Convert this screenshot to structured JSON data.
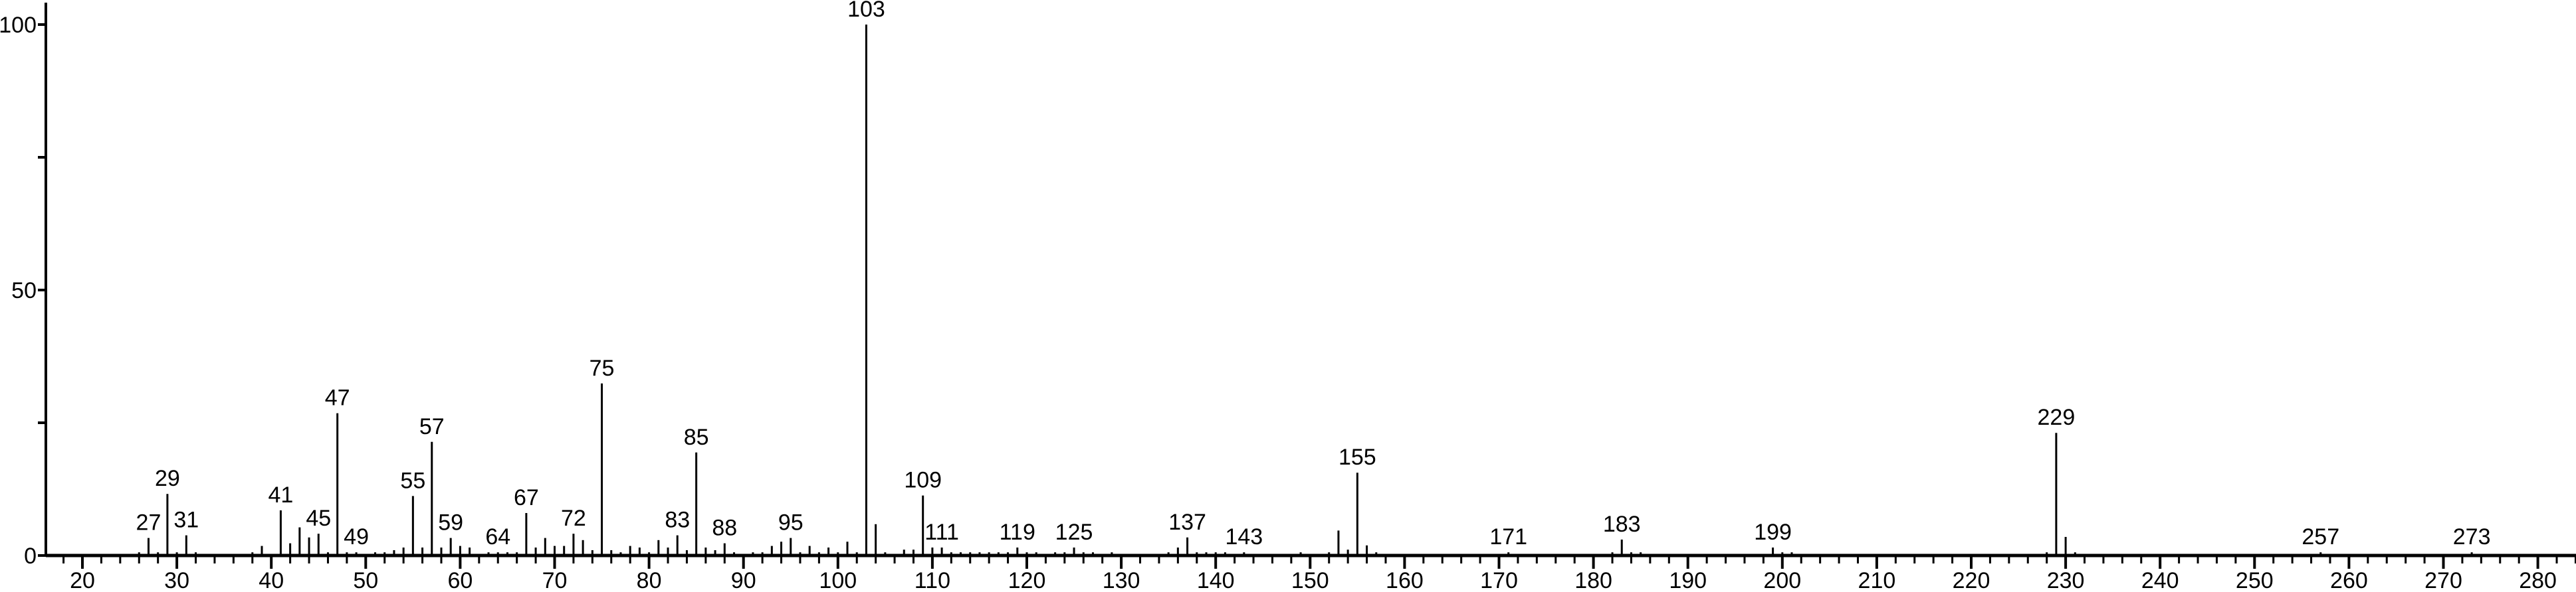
{
  "chart_data": {
    "type": "bar",
    "title": "",
    "xlabel": "",
    "ylabel": "",
    "xlim": [
      16.1,
      284
    ],
    "ylim": [
      0,
      100
    ],
    "grid": false,
    "x_ticks": [
      "20",
      "30",
      "40",
      "50",
      "60",
      "70",
      "80",
      "90",
      "100",
      "110",
      "120",
      "130",
      "140",
      "150",
      "160",
      "170",
      "180",
      "190",
      "200",
      "210",
      "220",
      "230",
      "240",
      "250",
      "260",
      "270",
      "280"
    ],
    "y_ticks": [
      "0",
      "50",
      "100"
    ],
    "bar_color": "#000000",
    "peaks": [
      [
        26,
        0.6
      ],
      [
        27,
        3.3
      ],
      [
        28,
        0.6
      ],
      [
        29,
        11.6
      ],
      [
        30,
        0.6
      ],
      [
        31,
        3.8
      ],
      [
        32,
        0.6
      ],
      [
        38,
        0.6
      ],
      [
        39,
        1.8
      ],
      [
        41,
        8.5
      ],
      [
        42,
        2.3
      ],
      [
        43,
        5.3
      ],
      [
        44,
        3.4
      ],
      [
        45,
        4.1
      ],
      [
        46,
        0.6
      ],
      [
        47,
        26.8
      ],
      [
        48,
        0.6
      ],
      [
        49,
        0.6
      ],
      [
        51,
        0.6
      ],
      [
        52,
        0.6
      ],
      [
        53,
        1
      ],
      [
        54,
        1.5
      ],
      [
        55,
        11.2
      ],
      [
        56,
        1.5
      ],
      [
        57,
        21.4
      ],
      [
        58,
        1.5
      ],
      [
        59,
        3.3
      ],
      [
        60,
        1.8
      ],
      [
        61,
        1.5
      ],
      [
        63,
        0.6
      ],
      [
        64,
        0.6
      ],
      [
        65,
        0.6
      ],
      [
        66,
        0.6
      ],
      [
        67,
        8
      ],
      [
        68,
        1.5
      ],
      [
        69,
        3.3
      ],
      [
        70,
        1.8
      ],
      [
        71,
        1.8
      ],
      [
        72,
        4.1
      ],
      [
        73,
        2.9
      ],
      [
        74,
        1
      ],
      [
        75,
        32.4
      ],
      [
        76,
        1
      ],
      [
        77,
        0.6
      ],
      [
        78,
        1.8
      ],
      [
        79,
        1.5
      ],
      [
        80,
        0.6
      ],
      [
        81,
        2.9
      ],
      [
        82,
        1.5
      ],
      [
        83,
        3.8
      ],
      [
        84,
        1
      ],
      [
        85,
        19.4
      ],
      [
        86,
        1.5
      ],
      [
        87,
        1
      ],
      [
        88,
        2.3
      ],
      [
        89,
        0.6
      ],
      [
        91,
        0.6
      ],
      [
        92,
        0.6
      ],
      [
        93,
        1.8
      ],
      [
        94,
        2.6
      ],
      [
        95,
        3.3
      ],
      [
        96,
        0.6
      ],
      [
        97,
        1.8
      ],
      [
        98,
        0.6
      ],
      [
        99,
        1.5
      ],
      [
        100,
        0.6
      ],
      [
        101,
        2.6
      ],
      [
        102,
        0.6
      ],
      [
        103,
        100
      ],
      [
        104,
        5.9
      ],
      [
        105,
        0.6
      ],
      [
        107,
        1.1
      ],
      [
        108,
        1.1
      ],
      [
        109,
        11.3
      ],
      [
        110,
        1.5
      ],
      [
        111,
        1.5
      ],
      [
        112,
        0.6
      ],
      [
        113,
        0.6
      ],
      [
        114,
        0.6
      ],
      [
        115,
        0.6
      ],
      [
        116,
        0.6
      ],
      [
        117,
        0.6
      ],
      [
        118,
        0.6
      ],
      [
        119,
        1.5
      ],
      [
        120,
        0.6
      ],
      [
        121,
        0.6
      ],
      [
        123,
        0.6
      ],
      [
        124,
        0.6
      ],
      [
        125,
        1.5
      ],
      [
        126,
        0.6
      ],
      [
        127,
        0.6
      ],
      [
        129,
        0.6
      ],
      [
        135,
        0.6
      ],
      [
        136,
        1.5
      ],
      [
        137,
        3.4
      ],
      [
        138,
        0.6
      ],
      [
        139,
        0.6
      ],
      [
        140,
        0.6
      ],
      [
        141,
        0.6
      ],
      [
        143,
        0.6
      ],
      [
        149,
        0.6
      ],
      [
        152,
        0.6
      ],
      [
        153,
        4.7
      ],
      [
        154,
        1.1
      ],
      [
        155,
        15.6
      ],
      [
        156,
        1.9
      ],
      [
        157,
        0.6
      ],
      [
        171,
        0.6
      ],
      [
        182,
        0.6
      ],
      [
        183,
        3
      ],
      [
        184,
        0.6
      ],
      [
        185,
        0.6
      ],
      [
        199,
        1.5
      ],
      [
        200,
        0.6
      ],
      [
        201,
        0.6
      ],
      [
        228,
        0.6
      ],
      [
        229,
        23.1
      ],
      [
        230,
        3.5
      ],
      [
        231,
        0.6
      ],
      [
        257,
        0.6
      ],
      [
        273,
        0.6
      ]
    ],
    "labeled": [
      "27",
      "29",
      "31",
      "41",
      "45",
      "47",
      "49",
      "55",
      "57",
      "59",
      "64",
      "67",
      "72",
      "75",
      "83",
      "85",
      "88",
      "95",
      "103",
      "109",
      "111",
      "119",
      "125",
      "137",
      "143",
      "155",
      "171",
      "183",
      "199",
      "229",
      "257",
      "273"
    ]
  }
}
